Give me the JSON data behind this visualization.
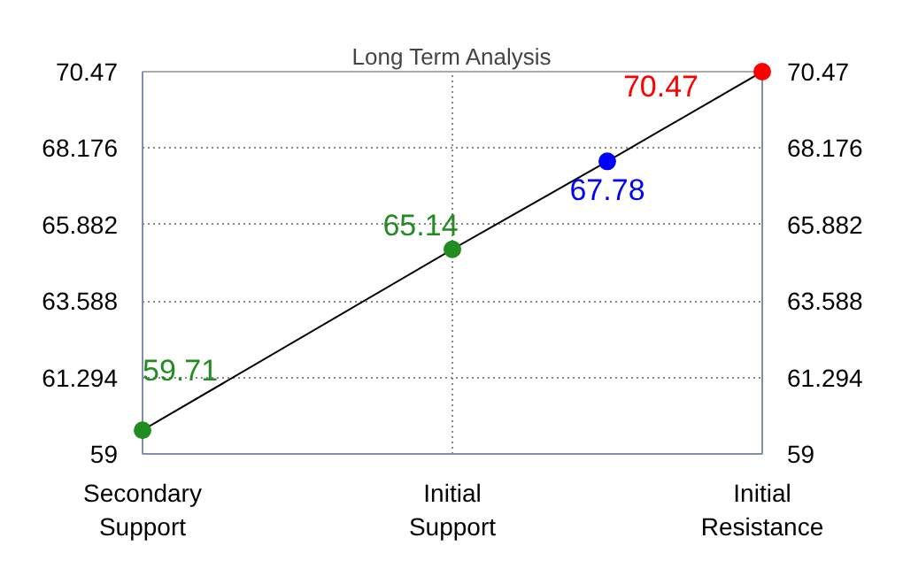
{
  "chart_data": {
    "type": "line",
    "title": "Long Term Analysis",
    "categories": [
      "Secondary Support",
      null,
      "Initial Support",
      null,
      "Initial Resistance"
    ],
    "series": [
      {
        "color": "#000000",
        "colors": [
          "#228b22",
          null,
          "#228b22",
          "#0000ff",
          "#ff0000"
        ],
        "values": [
          59.71,
          null,
          65.14,
          67.78,
          70.47
        ]
      }
    ],
    "ylim": [
      59,
      70.47
    ],
    "yticks": [
      59,
      61.294,
      63.588,
      65.882,
      68.176,
      70.47
    ],
    "y2lim": [
      59,
      70.47
    ],
    "y2ticks": [
      59,
      61.294,
      63.588,
      65.882,
      68.176,
      70.47
    ],
    "marker": "circle",
    "data_labels": true,
    "grid": true
  }
}
